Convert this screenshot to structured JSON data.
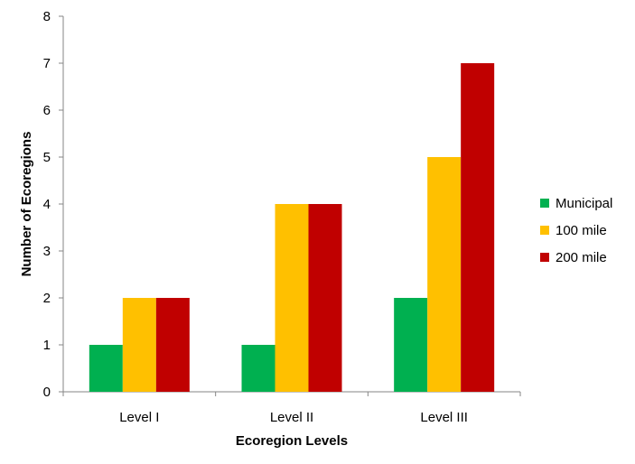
{
  "chart_data": {
    "type": "bar",
    "title": "",
    "xlabel": "Ecoregion Levels",
    "ylabel": "Number of Ecoregions",
    "categories": [
      "Level I",
      "Level II",
      "Level III"
    ],
    "series": [
      {
        "name": "Municipal",
        "color": "#00b050",
        "values": [
          1,
          1,
          2
        ]
      },
      {
        "name": "100 mile",
        "color": "#ffc000",
        "values": [
          2,
          4,
          5
        ]
      },
      {
        "name": "200 mile",
        "color": "#c00000",
        "values": [
          2,
          4,
          7
        ]
      }
    ],
    "ylim": [
      0,
      8
    ],
    "yticks": [
      0,
      1,
      2,
      3,
      4,
      5,
      6,
      7,
      8
    ],
    "grid": false,
    "legend_position": "right"
  }
}
